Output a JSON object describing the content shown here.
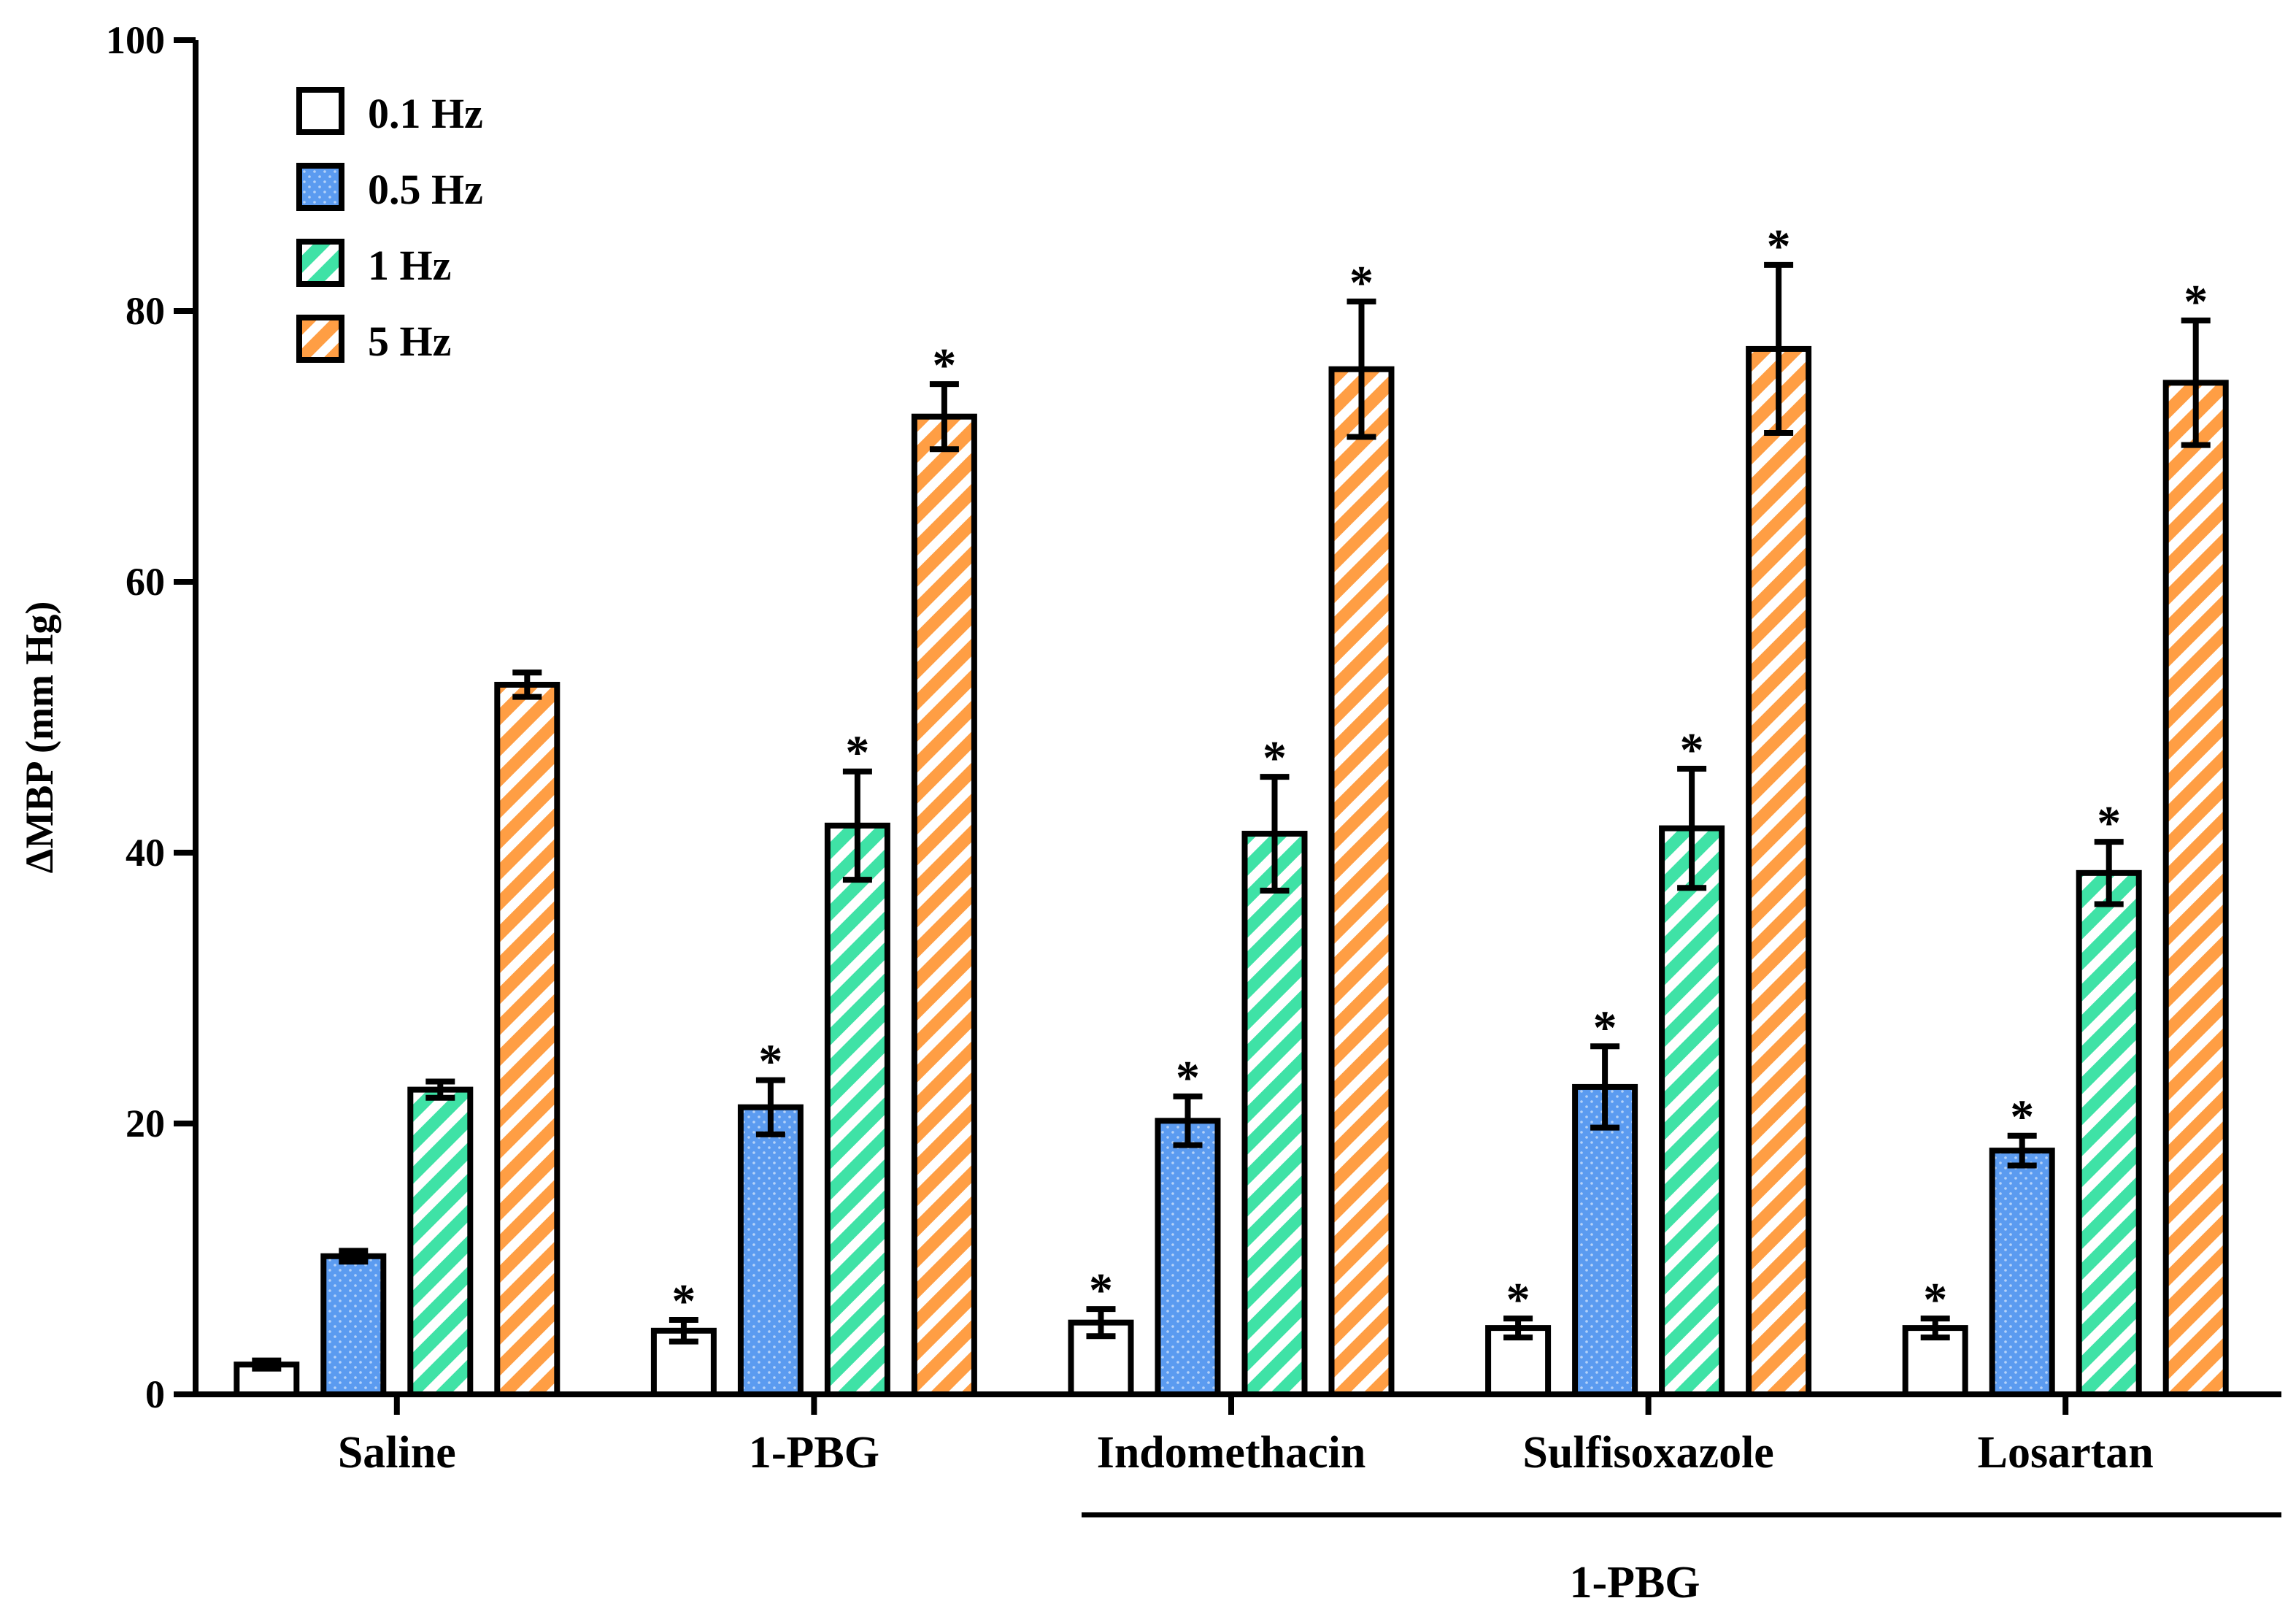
{
  "chart_data": {
    "type": "bar",
    "title": "",
    "xlabel": "",
    "ylabel": "ΔMBP (mm Hg)",
    "ylim": [
      0,
      100
    ],
    "yticks": [
      0,
      20,
      40,
      60,
      80,
      100
    ],
    "categories": [
      "Saline",
      "1-PBG",
      "Indomethacin",
      "Sulfisoxazole",
      "Losartan"
    ],
    "group_label": "1-PBG",
    "group_label_applies_to": [
      "Indomethacin",
      "Sulfisoxazole",
      "Losartan"
    ],
    "legend_position": "top-left",
    "series": [
      {
        "name": "0.1 Hz",
        "fill": "#ffffff",
        "pattern": "none",
        "values": [
          2.2,
          4.7,
          5.3,
          4.9,
          4.9
        ],
        "errors": [
          0.3,
          0.8,
          1.0,
          0.7,
          0.7
        ],
        "significant": [
          false,
          true,
          true,
          true,
          true
        ]
      },
      {
        "name": "0.5 Hz",
        "fill": "#5b9bf0",
        "pattern": "dots",
        "values": [
          10.2,
          21.2,
          20.2,
          22.7,
          18.0
        ],
        "errors": [
          0.4,
          2.0,
          1.8,
          3.0,
          1.1
        ],
        "significant": [
          false,
          true,
          true,
          true,
          true
        ]
      },
      {
        "name": "1 Hz",
        "fill": "#3fe2a6",
        "pattern": "stripes",
        "values": [
          22.5,
          42.0,
          41.4,
          41.8,
          38.5
        ],
        "errors": [
          0.6,
          4.0,
          4.2,
          4.4,
          2.3
        ],
        "significant": [
          false,
          true,
          true,
          true,
          true
        ]
      },
      {
        "name": "5 Hz",
        "fill": "#ff9e44",
        "pattern": "stripes",
        "values": [
          52.4,
          72.2,
          75.7,
          77.2,
          74.7
        ],
        "errors": [
          0.9,
          2.4,
          5.0,
          6.2,
          4.6
        ],
        "significant": [
          false,
          true,
          true,
          true,
          true
        ]
      }
    ],
    "significance_marker": "*"
  }
}
